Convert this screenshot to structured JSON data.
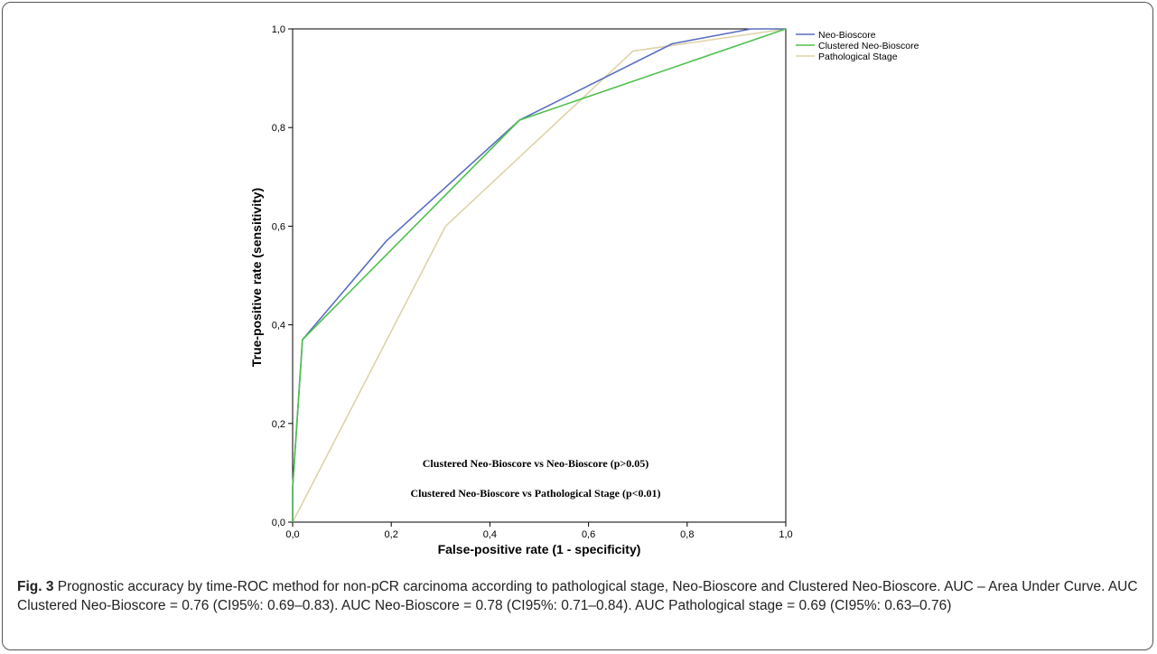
{
  "chart_data": {
    "type": "line",
    "xlabel": "False-positive rate (1 - specificity)",
    "ylabel": "True-positive rate (sensitivity)",
    "xlim": [
      0,
      1
    ],
    "ylim": [
      0,
      1
    ],
    "x_ticks": [
      "0,0",
      "0,2",
      "0,4",
      "0,6",
      "0,8",
      "1,0"
    ],
    "y_ticks": [
      "0,0",
      "0,2",
      "0,4",
      "0,6",
      "0,8",
      "1,0"
    ],
    "legend_position": "top-right",
    "series": [
      {
        "name": "Neo-Bioscore",
        "color": "#5b6fbf",
        "points": [
          [
            0,
            0
          ],
          [
            0.0,
            0.07
          ],
          [
            0.02,
            0.37
          ],
          [
            0.19,
            0.57
          ],
          [
            0.46,
            0.815
          ],
          [
            0.77,
            0.97
          ],
          [
            0.93,
            1.0
          ],
          [
            1.0,
            1.0
          ]
        ]
      },
      {
        "name": "Clustered Neo-Bioscore",
        "color": "#4fc04f",
        "points": [
          [
            0,
            0
          ],
          [
            0.0,
            0.07
          ],
          [
            0.02,
            0.37
          ],
          [
            0.46,
            0.815
          ],
          [
            1.0,
            1.0
          ]
        ]
      },
      {
        "name": "Pathological Stage",
        "color": "#ddd3a8",
        "points": [
          [
            0,
            0
          ],
          [
            0.31,
            0.6
          ],
          [
            0.69,
            0.955
          ],
          [
            0.76,
            0.965
          ],
          [
            1.0,
            1.0
          ]
        ]
      }
    ],
    "annotations": [
      "Clustered Neo-Bioscore vs Neo-Bioscore (p>0.05)",
      "Clustered Neo-Bioscore vs Pathological Stage (p<0.01)"
    ]
  },
  "caption": {
    "label": "Fig. 3",
    "text": "Prognostic accuracy by time-ROC method for non-pCR carcinoma according to pathological stage, Neo-Bioscore and Clustered Neo-Bioscore. AUC – Area Under Curve. AUC Clustered Neo-Bioscore = 0.76 (CI95%: 0.69–0.83). AUC Neo-Bioscore = 0.78 (CI95%: 0.71–0.84). AUC Pathological stage = 0.69 (CI95%: 0.63–0.76)"
  }
}
